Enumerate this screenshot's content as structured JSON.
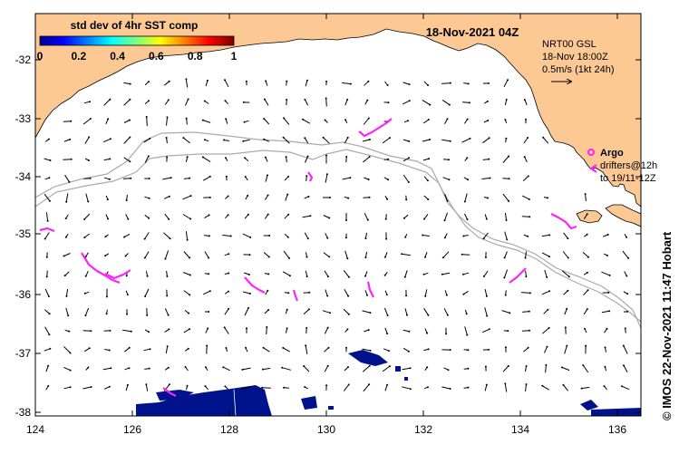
{
  "map": {
    "title": "18-Nov-2021 04Z",
    "colorbar": {
      "label": "std dev of 4hr SST comp",
      "ticks": [
        "0",
        "0.2",
        "0.4",
        "0.6",
        "0.8",
        "1"
      ]
    },
    "current_legend": {
      "line1": "NRT00 GSL",
      "line2": "18-Nov 18:00Z",
      "line3": "0.5m/s (1kt 24h)"
    },
    "argo_legend": {
      "argo_label": "Argo",
      "drifters_line1": "drifters@12h",
      "drifters_line2": "to 19/11-12Z"
    },
    "credit": "© IMOS 22-Nov-2021 11:47 Hobart",
    "x_ticks": [
      "124",
      "126",
      "128",
      "130",
      "132",
      "134",
      "136"
    ],
    "y_ticks": [
      "-32",
      "-33",
      "-34",
      "-35",
      "-36",
      "-37",
      "-38"
    ],
    "colors": {
      "land": "#fcc995",
      "ocean": "#ffffff",
      "drifter": "#ff22ff",
      "sst_patch": "#00138d",
      "shelf_line": "#aaaaaa"
    }
  }
}
